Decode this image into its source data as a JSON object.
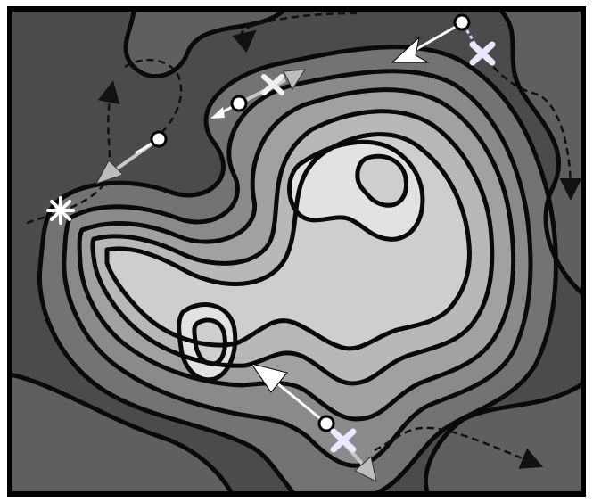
{
  "figure": {
    "kind": "contour landscape with gradient-descent paths",
    "colors": {
      "border": "#000000",
      "contour_line": "#0a0a0a",
      "level_0": "#4b4b4b",
      "level_1": "#5f5f5f",
      "level_2": "#737373",
      "level_3": "#8a8a8a",
      "level_4": "#a1a1a1",
      "level_5": "#b8b8b8",
      "level_6": "#cecece",
      "level_7": "#e2e2e2",
      "trajectory": "#111111",
      "gradient_arrow": "#ffffff",
      "update_arrow": "#c8c8c8",
      "minimum_marker": "#ffffff",
      "cross_marker": "#e8e8ff"
    },
    "markers": [
      {
        "name": "start-point",
        "type": "dot"
      },
      {
        "name": "asterisk-minimum",
        "type": "asterisk"
      },
      {
        "name": "cross-point",
        "type": "cross"
      }
    ],
    "arrows": [
      {
        "name": "gradient-arrow",
        "style": "white"
      },
      {
        "name": "update-arrow",
        "style": "gray"
      }
    ],
    "paths": [
      {
        "name": "trajectory",
        "style": "dashed"
      }
    ]
  }
}
